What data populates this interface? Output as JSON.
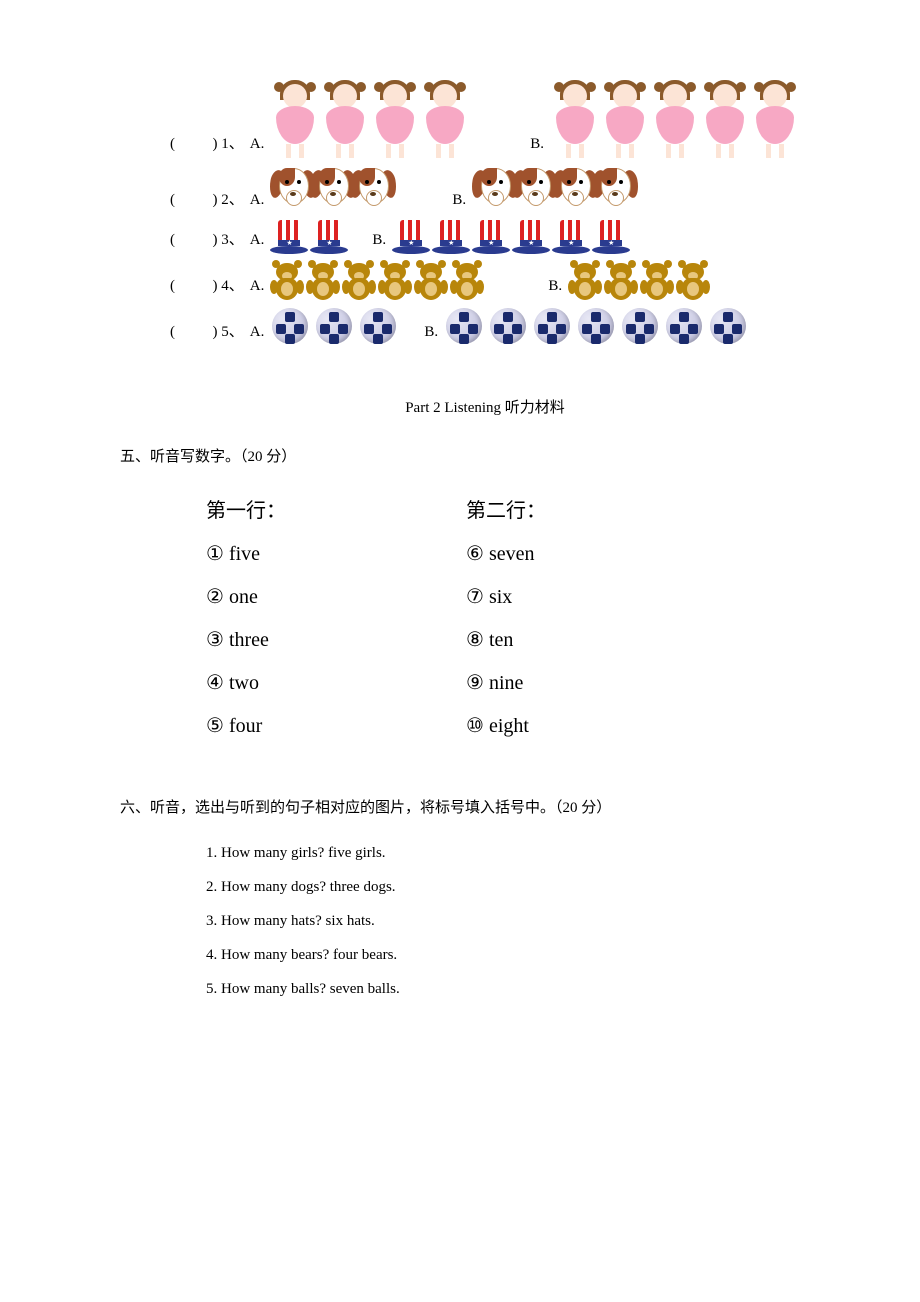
{
  "questions": [
    {
      "num": "1",
      "iconType": "girl",
      "countA": 4,
      "countB": 5
    },
    {
      "num": "2",
      "iconType": "dog",
      "countA": 3,
      "countB": 4
    },
    {
      "num": "3",
      "iconType": "hat",
      "countA": 2,
      "countB": 6
    },
    {
      "num": "4",
      "iconType": "bear",
      "countA": 6,
      "countB": 4
    },
    {
      "num": "5",
      "iconType": "ball",
      "countA": 3,
      "countB": 7
    }
  ],
  "parenTemplate": "(          ) ",
  "labelA": "A.",
  "labelB": "B.",
  "part2Title_en": "Part 2 Listening ",
  "part2Title_cn": "听力材料",
  "section5": "五、听音写数字。（20 分）",
  "col1Head": "第一行：",
  "col2Head": "第二行：",
  "col1Items": [
    {
      "circ": "①",
      "word": "five"
    },
    {
      "circ": "②",
      "word": "one"
    },
    {
      "circ": "③",
      "word": "three"
    },
    {
      "circ": "④",
      "word": "two"
    },
    {
      "circ": "⑤",
      "word": "four"
    }
  ],
  "col2Items": [
    {
      "circ": "⑥",
      "word": "seven"
    },
    {
      "circ": "⑦",
      "word": "six"
    },
    {
      "circ": "⑧",
      "word": "ten"
    },
    {
      "circ": "⑨",
      "word": "nine"
    },
    {
      "circ": "⑩",
      "word": "eight"
    }
  ],
  "section6": "六、听音，选出与听到的句子相对应的图片，将标号填入括号中。（20 分）",
  "q6Items": [
    "1. How many girls?    five girls.",
    "2. How many dogs?    three dogs.",
    "3. How many hats?    six hats.",
    "4. How many bears?    four bears.",
    "5. How many balls?    seven balls."
  ],
  "iconColors": {
    "girl_dress": "#f7a8c4",
    "dog_ear": "#a0522d",
    "hat_stripe": "#d22",
    "hat_band": "#2a3b8f",
    "bear_body": "#b8860b",
    "ball_hex": "#1a2a6c"
  }
}
